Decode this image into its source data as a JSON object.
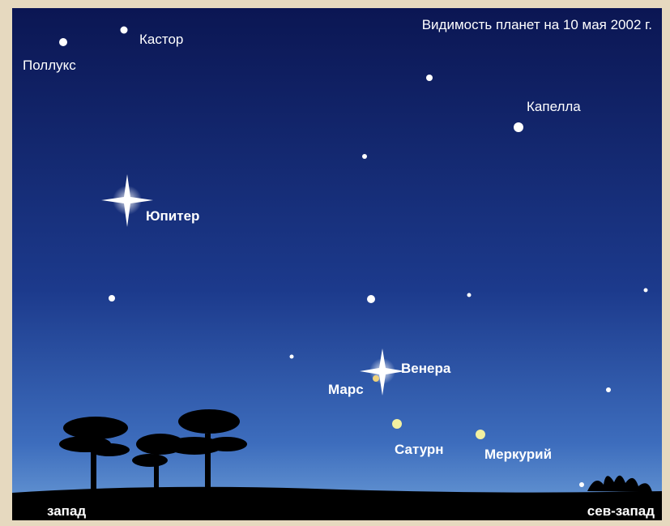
{
  "title": "Видимость планет на 10 мая 2002 г.",
  "stars": [
    {
      "label": "Кастор"
    },
    {
      "label": "Поллукс"
    },
    {
      "label": "Капелла"
    }
  ],
  "planets": [
    {
      "label": "Юпитер"
    },
    {
      "label": "Венера"
    },
    {
      "label": "Марс"
    },
    {
      "label": "Сатурн"
    },
    {
      "label": "Меркурий"
    }
  ],
  "directions": [
    "запад",
    "сев-запад"
  ]
}
